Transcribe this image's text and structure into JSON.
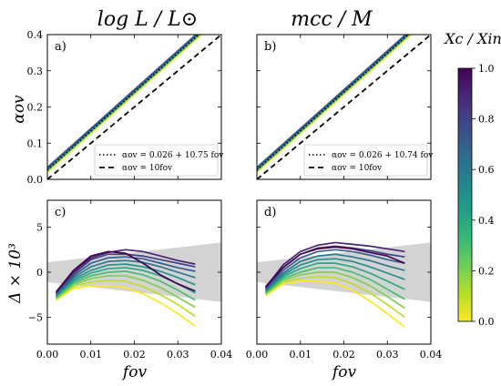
{
  "chart_data": [
    {
      "type": "line",
      "title": "log L / L⊙",
      "panel_label": "a)",
      "ylabel": "αov",
      "xlim": [
        0,
        0.04
      ],
      "ylim": [
        0,
        0.4
      ],
      "xticks": [
        "0.00",
        "0.01",
        "0.02",
        "0.03",
        "0.04"
      ],
      "yticks": [
        "0.0",
        "0.1",
        "0.2",
        "0.3",
        "0.4"
      ],
      "legend": [
        "αov = 0.026 + 10.75 fov",
        "αov = 10fov"
      ],
      "legend_position": "lower-right",
      "fit": {
        "intercept": 0.026,
        "slope": 10.75
      },
      "reference": {
        "slope": 10
      },
      "band_colors": [
        "#fde725",
        "#5ec962",
        "#21918c",
        "#3b528b"
      ]
    },
    {
      "type": "line",
      "title": "mcc / M",
      "panel_label": "b)",
      "xlim": [
        0,
        0.04
      ],
      "ylim": [
        0,
        0.4
      ],
      "xticks": [
        "0.00",
        "0.01",
        "0.02",
        "0.03",
        "0.04"
      ],
      "yticks": [
        "0.0",
        "0.1",
        "0.2",
        "0.3",
        "0.4"
      ],
      "legend": [
        "αov = 0.026 + 10.74 fov",
        "αov = 10fov"
      ],
      "legend_position": "lower-right",
      "fit": {
        "intercept": 0.026,
        "slope": 10.74
      },
      "reference": {
        "slope": 10
      },
      "band_colors": [
        "#fde725",
        "#5ec962",
        "#21918c",
        "#3b528b"
      ]
    },
    {
      "type": "line",
      "panel_label": "c)",
      "xlabel": "fov",
      "ylabel": "Δ × 10³",
      "xlim": [
        0,
        0.04
      ],
      "ylim": [
        -8,
        8
      ],
      "xticks": [
        "0.00",
        "0.01",
        "0.02",
        "0.03",
        "0.04"
      ],
      "yticks": [
        "−5",
        "0",
        "5"
      ],
      "band": {
        "x": [
          0,
          0.04
        ],
        "lower": [
          -1.1,
          -3.3
        ],
        "upper": [
          1.1,
          3.3
        ]
      },
      "x": [
        0.002,
        0.006,
        0.01,
        0.014,
        0.018,
        0.022,
        0.026,
        0.03,
        0.034
      ],
      "series": [
        {
          "xc": 1.0,
          "values": [
            -2.2,
            0.2,
            1.8,
            2.3,
            2.1,
            1.0,
            -0.3,
            -1.3,
            -2.1
          ]
        },
        {
          "xc": 0.9,
          "values": [
            -2.2,
            0.0,
            1.6,
            2.2,
            2.5,
            2.3,
            1.8,
            1.3,
            0.9
          ]
        },
        {
          "xc": 0.8,
          "values": [
            -2.3,
            -0.2,
            1.4,
            2.0,
            2.0,
            1.8,
            1.4,
            1.0,
            0.6
          ]
        },
        {
          "xc": 0.7,
          "values": [
            -2.4,
            -0.4,
            1.0,
            1.6,
            1.7,
            1.5,
            1.0,
            0.5,
            0.1
          ]
        },
        {
          "xc": 0.6,
          "values": [
            -2.5,
            -0.6,
            0.6,
            1.2,
            1.3,
            1.1,
            0.6,
            0.0,
            -0.6
          ]
        },
        {
          "xc": 0.5,
          "values": [
            -2.6,
            -0.8,
            0.2,
            0.8,
            0.9,
            0.6,
            0.1,
            -0.6,
            -1.4
          ]
        },
        {
          "xc": 0.4,
          "values": [
            -2.7,
            -1.0,
            -0.1,
            0.4,
            0.5,
            0.2,
            -0.4,
            -1.3,
            -2.3
          ]
        },
        {
          "xc": 0.3,
          "values": [
            -2.8,
            -1.2,
            -0.4,
            0.0,
            0.1,
            -0.3,
            -1.0,
            -2.0,
            -3.1
          ]
        },
        {
          "xc": 0.2,
          "values": [
            -2.9,
            -1.4,
            -0.7,
            -0.4,
            -0.4,
            -0.9,
            -1.7,
            -2.8,
            -3.9
          ]
        },
        {
          "xc": 0.1,
          "values": [
            -3.0,
            -1.6,
            -1.1,
            -0.9,
            -1.0,
            -1.6,
            -2.5,
            -3.6,
            -4.9
          ]
        },
        {
          "xc": 0.0,
          "values": [
            -3.1,
            -1.8,
            -1.5,
            -1.5,
            -1.7,
            -2.4,
            -3.4,
            -4.6,
            -6.0
          ]
        }
      ]
    },
    {
      "type": "line",
      "panel_label": "d)",
      "xlabel": "fov",
      "xlim": [
        0,
        0.04
      ],
      "ylim": [
        -8,
        8
      ],
      "xticks": [
        "0.00",
        "0.01",
        "0.02",
        "0.03",
        "0.04"
      ],
      "yticks": [
        "−5",
        "0",
        "5"
      ],
      "band": {
        "x": [
          0,
          0.04
        ],
        "lower": [
          -1.1,
          -3.3
        ],
        "upper": [
          1.1,
          3.3
        ]
      },
      "x": [
        0.002,
        0.006,
        0.01,
        0.014,
        0.018,
        0.022,
        0.026,
        0.03,
        0.034
      ],
      "series": [
        {
          "xc": 1.0,
          "values": [
            -1.6,
            0.5,
            2.0,
            2.6,
            2.8,
            2.6,
            2.2,
            1.8,
            1.0
          ]
        },
        {
          "xc": 0.9,
          "values": [
            -1.7,
            0.8,
            2.3,
            3.0,
            3.3,
            3.1,
            2.9,
            2.6,
            2.3
          ]
        },
        {
          "xc": 0.8,
          "values": [
            -1.8,
            0.5,
            2.0,
            2.7,
            2.9,
            2.7,
            2.4,
            2.0,
            1.7
          ]
        },
        {
          "xc": 0.7,
          "values": [
            -1.9,
            0.2,
            1.6,
            2.3,
            2.5,
            2.3,
            1.9,
            1.4,
            1.0
          ]
        },
        {
          "xc": 0.6,
          "values": [
            -2.0,
            -0.1,
            1.2,
            1.8,
            2.0,
            1.7,
            1.3,
            0.7,
            0.2
          ]
        },
        {
          "xc": 0.5,
          "values": [
            -2.1,
            -0.3,
            0.8,
            1.4,
            1.5,
            1.2,
            0.6,
            -0.1,
            -0.8
          ]
        },
        {
          "xc": 0.4,
          "values": [
            -2.2,
            -0.5,
            0.4,
            1.0,
            1.0,
            0.6,
            -0.1,
            -1.0,
            -1.9
          ]
        },
        {
          "xc": 0.3,
          "values": [
            -2.3,
            -0.7,
            0.0,
            0.5,
            0.5,
            0.0,
            -0.8,
            -1.9,
            -3.0
          ]
        },
        {
          "xc": 0.2,
          "values": [
            -2.4,
            -0.9,
            -0.3,
            0.0,
            0.0,
            -0.6,
            -1.5,
            -2.7,
            -4.0
          ]
        },
        {
          "xc": 0.1,
          "values": [
            -2.5,
            -1.1,
            -0.7,
            -0.5,
            -0.6,
            -1.3,
            -2.3,
            -3.6,
            -5.0
          ]
        },
        {
          "xc": 0.0,
          "values": [
            -2.6,
            -1.3,
            -1.0,
            -1.0,
            -1.2,
            -2.0,
            -3.2,
            -4.6,
            -6.1
          ]
        }
      ]
    }
  ],
  "colorbar": {
    "label": "Xc / Xini",
    "range": [
      0,
      1
    ],
    "ticks": [
      "0.0",
      "0.2",
      "0.4",
      "0.6",
      "0.8",
      "1.0"
    ],
    "colormap": "viridis",
    "colors": [
      "#fde725",
      "#b5de2b",
      "#6ece58",
      "#35b779",
      "#1f9e89",
      "#26828e",
      "#31688e",
      "#3e4989",
      "#482878",
      "#440154"
    ],
    "band_color": "#d3d3d3"
  }
}
